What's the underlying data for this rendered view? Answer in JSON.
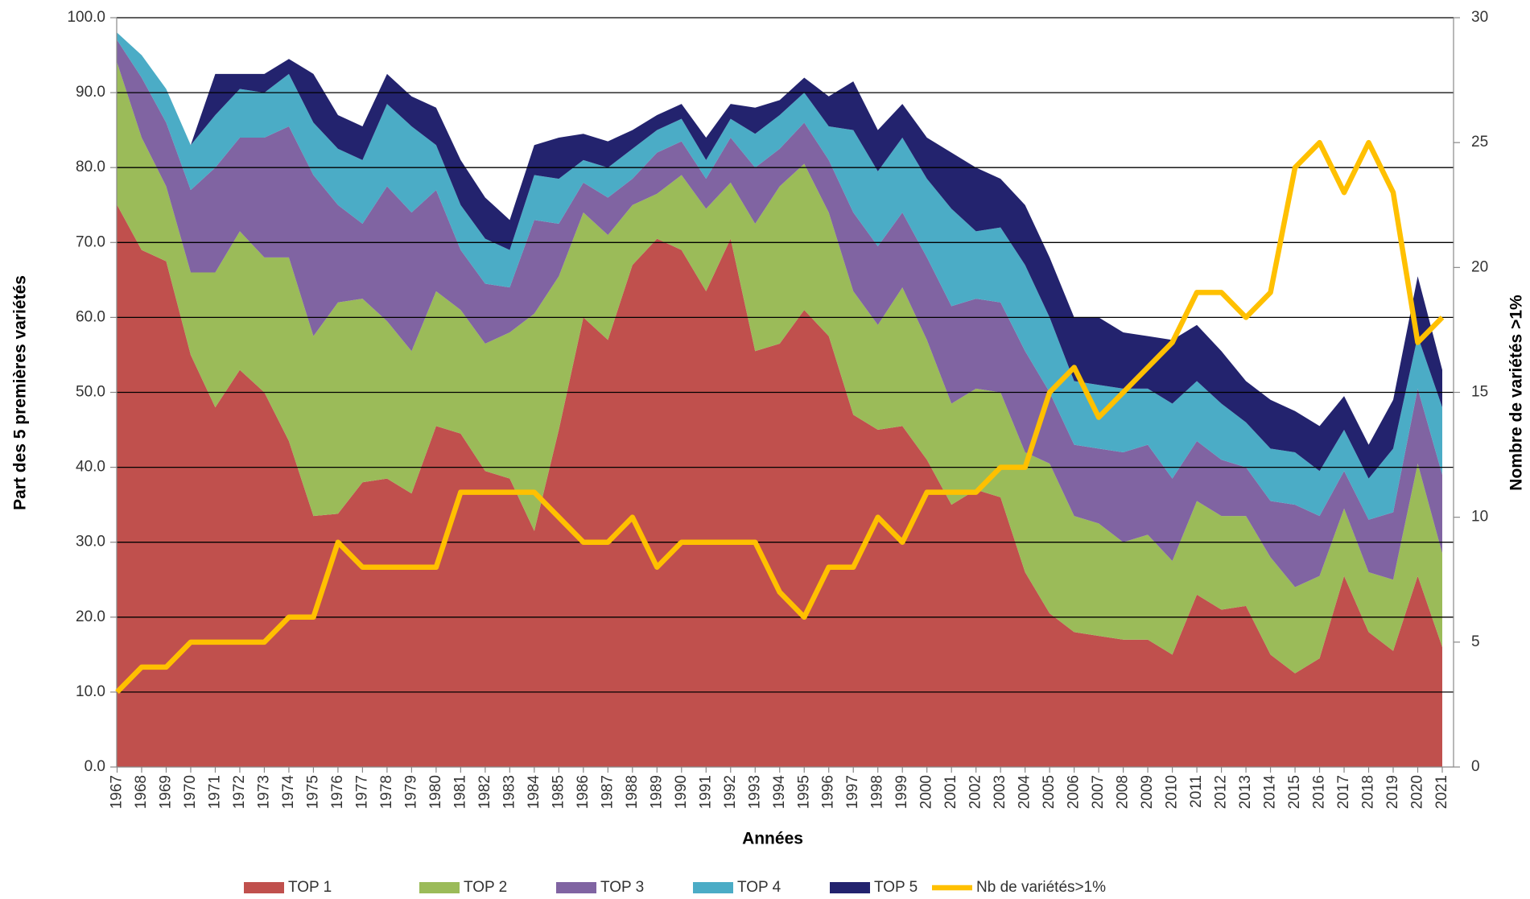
{
  "chart_data": {
    "type": "stacked-area",
    "xlabel": "Années",
    "ylabel": "Part des 5 premières variétés",
    "y2label": "Nombre de variétés >1%",
    "categories": [
      "1967",
      "1968",
      "1969",
      "1970",
      "1971",
      "1972",
      "1973",
      "1974",
      "1975",
      "1976",
      "1977",
      "1978",
      "1979",
      "1980",
      "1981",
      "1982",
      "1983",
      "1984",
      "1985",
      "1986",
      "1987",
      "1988",
      "1989",
      "1990",
      "1991",
      "1992",
      "1993",
      "1994",
      "1995",
      "1996",
      "1997",
      "1998",
      "1999",
      "2000",
      "2001",
      "2002",
      "2003",
      "2004",
      "2005",
      "2006",
      "2007",
      "2008",
      "2009",
      "2010",
      "2011",
      "2012",
      "2013",
      "2014",
      "2015",
      "2016",
      "2017",
      "2018",
      "2019",
      "2020",
      "2021"
    ],
    "series": [
      {
        "name": "TOP 1",
        "color": "#C0504D",
        "values": [
          75,
          69,
          67.5,
          55,
          48,
          53,
          50,
          43.5,
          33.5,
          33.8,
          38,
          38.5,
          36.5,
          45.5,
          44.5,
          39.5,
          38.5,
          31.5,
          45,
          60,
          57,
          67,
          70.5,
          69,
          63.5,
          70.5,
          55.5,
          56.5,
          61,
          57.5,
          47,
          45,
          45.5,
          41,
          35,
          37,
          36,
          26,
          20.5,
          18,
          17.5,
          17,
          17,
          15,
          23,
          21,
          21.5,
          15,
          12.5,
          14.5,
          25.5,
          18,
          15.5,
          25.5,
          16
        ]
      },
      {
        "name": "TOP 2",
        "color": "#9BBB59",
        "values": [
          19,
          15,
          10,
          11,
          18,
          18.5,
          18,
          24.5,
          24,
          28.2,
          24.5,
          21,
          19,
          18,
          16.5,
          17,
          19.5,
          29,
          20.5,
          14,
          14,
          8,
          6,
          10,
          11,
          7.5,
          17,
          21,
          19.5,
          16.5,
          16.5,
          14,
          18.5,
          16,
          13.5,
          13.5,
          14,
          16,
          20,
          15.5,
          15,
          13,
          14,
          12.5,
          12.5,
          12.5,
          12,
          13,
          11.5,
          11,
          9,
          8,
          9.5,
          15,
          12.5
        ]
      },
      {
        "name": "TOP 3",
        "color": "#8064A2",
        "values": [
          3,
          8,
          8.5,
          11,
          14,
          12.5,
          16,
          17.5,
          21.5,
          13,
          10,
          18,
          18.5,
          13.5,
          8,
          8,
          6,
          12.5,
          7,
          4,
          5,
          3.5,
          5.5,
          4.5,
          4,
          6,
          7.5,
          5,
          5.5,
          7,
          10.5,
          10.5,
          10,
          11,
          13,
          12,
          12,
          13.5,
          9.5,
          9.5,
          10,
          12,
          12,
          11,
          8,
          7.5,
          6.5,
          7.5,
          11,
          8,
          5,
          7,
          9,
          10,
          10.5
        ]
      },
      {
        "name": "TOP 4",
        "color": "#4BACC6",
        "values": [
          1,
          3,
          4.5,
          6,
          7,
          6.5,
          6,
          7,
          7,
          7.5,
          8.5,
          11,
          11.5,
          6,
          6,
          6,
          5,
          6,
          6,
          3,
          4,
          4,
          3,
          3,
          2.5,
          2.5,
          4.5,
          4.5,
          4,
          4.5,
          11,
          10,
          10,
          10.5,
          13,
          9,
          10,
          11.5,
          10,
          8.5,
          8.5,
          8.5,
          7.5,
          10,
          8,
          7.5,
          6,
          7,
          7,
          6,
          5.5,
          5.5,
          8.5,
          7,
          9
        ]
      },
      {
        "name": "TOP 5",
        "color": "#23236E",
        "values": [
          0,
          0,
          0,
          0,
          5.5,
          2,
          2.5,
          2,
          6.5,
          4.5,
          4.5,
          4,
          4,
          5,
          6,
          5.5,
          4,
          4,
          5.5,
          3.5,
          3.5,
          2.5,
          2,
          2,
          3,
          2,
          3.5,
          2,
          2,
          4,
          6.5,
          5.5,
          4.5,
          5.5,
          7.5,
          8.5,
          6.5,
          8,
          8,
          8.5,
          9,
          7.5,
          7,
          8.5,
          7.5,
          7,
          5.5,
          6.5,
          5.5,
          6,
          4.5,
          4.5,
          6.5,
          8,
          5
        ]
      },
      {
        "name": "Nb de variétés>1%",
        "type": "line",
        "axis": "y2",
        "color": "#FFC000",
        "values": [
          3,
          4,
          4,
          5,
          5,
          5,
          5,
          6,
          6,
          9,
          8,
          8,
          8,
          8,
          11,
          11,
          11,
          11,
          10,
          9,
          9,
          10,
          8,
          9,
          9,
          9,
          9,
          7,
          6,
          8,
          8,
          10,
          9,
          11,
          11,
          11,
          12,
          12,
          15,
          16,
          14,
          15,
          16,
          17,
          19,
          19,
          18,
          19,
          24,
          25,
          23,
          25,
          23,
          17,
          18
        ]
      }
    ],
    "ylim": [
      0,
      100
    ],
    "yticks": [
      {
        "value": 0,
        "label": "0.0"
      },
      {
        "value": 10,
        "label": "10.0"
      },
      {
        "value": 20,
        "label": "20.0"
      },
      {
        "value": 30,
        "label": "30.0"
      },
      {
        "value": 40,
        "label": "40.0"
      },
      {
        "value": 50,
        "label": "50.0"
      },
      {
        "value": 60,
        "label": "60.0"
      },
      {
        "value": 70,
        "label": "70.0"
      },
      {
        "value": 80,
        "label": "80.0"
      },
      {
        "value": 90,
        "label": "90.0"
      },
      {
        "value": 100,
        "label": "100.0"
      }
    ],
    "y2lim": [
      0,
      30
    ],
    "y2ticks": [
      0,
      5,
      10,
      15,
      20,
      25,
      30
    ],
    "grid": true,
    "legend": "bottom"
  }
}
